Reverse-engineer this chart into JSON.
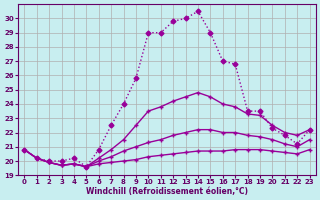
{
  "background_color": "#c8eef0",
  "grid_color": "#b0b0b0",
  "line_color": "#990099",
  "xlabel": "Windchill (Refroidissement éolien,°C)",
  "xlim": [
    -0.5,
    23.5
  ],
  "ylim": [
    19,
    31
  ],
  "yticks": [
    19,
    20,
    21,
    22,
    23,
    24,
    25,
    26,
    27,
    28,
    29,
    30
  ],
  "xticks": [
    0,
    1,
    2,
    3,
    4,
    5,
    6,
    7,
    8,
    9,
    10,
    11,
    12,
    13,
    14,
    15,
    16,
    17,
    18,
    19,
    20,
    21,
    22,
    23
  ],
  "series": [
    {
      "x": [
        0,
        1,
        2,
        3,
        4,
        5,
        6,
        7,
        8,
        9,
        10,
        11,
        12,
        13,
        14,
        15,
        16,
        17,
        18,
        19,
        20,
        21,
        22,
        23
      ],
      "y": [
        20.8,
        20.2,
        20.0,
        20.0,
        20.2,
        19.6,
        20.8,
        22.5,
        24.0,
        25.8,
        29.0,
        29.0,
        29.8,
        30.0,
        30.5,
        29.0,
        27.0,
        26.8,
        23.5,
        23.5,
        22.3,
        21.8,
        21.2,
        22.2
      ],
      "style": ":",
      "marker": "D",
      "markersize": 2.5,
      "linewidth": 1.0
    },
    {
      "x": [
        0,
        1,
        2,
        3,
        4,
        5,
        6,
        7,
        8,
        9,
        10,
        11,
        12,
        13,
        14,
        15,
        16,
        17,
        18,
        19,
        20,
        21,
        22,
        23
      ],
      "y": [
        20.8,
        20.2,
        19.9,
        19.7,
        19.8,
        19.6,
        20.2,
        20.8,
        21.5,
        22.5,
        23.5,
        23.8,
        24.2,
        24.5,
        24.8,
        24.5,
        24.0,
        23.8,
        23.3,
        23.2,
        22.5,
        22.0,
        21.8,
        22.2
      ],
      "style": "-",
      "marker": "+",
      "markersize": 3.5,
      "linewidth": 1.0
    },
    {
      "x": [
        0,
        1,
        2,
        3,
        4,
        5,
        6,
        7,
        8,
        9,
        10,
        11,
        12,
        13,
        14,
        15,
        16,
        17,
        18,
        19,
        20,
        21,
        22,
        23
      ],
      "y": [
        20.8,
        20.2,
        19.9,
        19.7,
        19.8,
        19.6,
        20.0,
        20.3,
        20.7,
        21.0,
        21.3,
        21.5,
        21.8,
        22.0,
        22.2,
        22.2,
        22.0,
        22.0,
        21.8,
        21.7,
        21.5,
        21.2,
        21.0,
        21.5
      ],
      "style": "-",
      "marker": "+",
      "markersize": 3.5,
      "linewidth": 1.0
    },
    {
      "x": [
        0,
        1,
        2,
        3,
        4,
        5,
        6,
        7,
        8,
        9,
        10,
        11,
        12,
        13,
        14,
        15,
        16,
        17,
        18,
        19,
        20,
        21,
        22,
        23
      ],
      "y": [
        20.8,
        20.2,
        19.9,
        19.7,
        19.8,
        19.6,
        19.8,
        19.9,
        20.0,
        20.1,
        20.3,
        20.4,
        20.5,
        20.6,
        20.7,
        20.7,
        20.7,
        20.8,
        20.8,
        20.8,
        20.7,
        20.6,
        20.5,
        20.8
      ],
      "style": "-",
      "marker": "+",
      "markersize": 3.5,
      "linewidth": 1.0
    }
  ]
}
